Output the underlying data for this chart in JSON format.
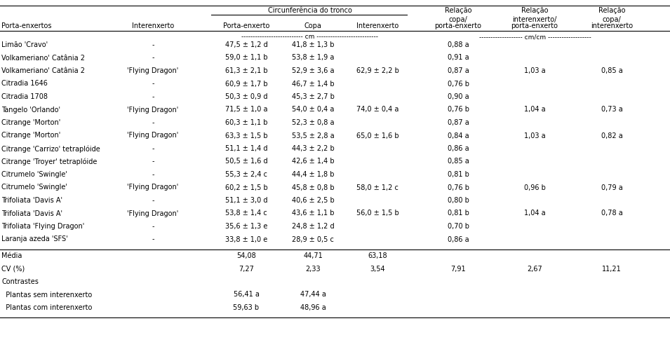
{
  "rows": [
    [
      "Limão 'Cravo'",
      "-",
      "47,5 ± 1,2 d",
      "41,8 ± 1,3 b",
      "",
      "0,88 a",
      "",
      ""
    ],
    [
      "Volkameriano' Catânia 2",
      "-",
      "59,0 ± 1,1 b",
      "53,8 ± 1,9 a",
      "",
      "0,91 a",
      "",
      ""
    ],
    [
      "Volkameriano' Catânia 2",
      "'Flying Dragon'",
      "61,3 ± 2,1 b",
      "52,9 ± 3,6 a",
      "62,9 ± 2,2 b",
      "0,87 a",
      "1,03 a",
      "0,85 a"
    ],
    [
      "Citradia 1646",
      "-",
      "60,9 ± 1,7 b",
      "46,7 ± 1,4 b",
      "",
      "0,76 b",
      "",
      ""
    ],
    [
      "Citradia 1708",
      "-",
      "50,3 ± 0,9 d",
      "45,3 ± 2,7 b",
      "",
      "0,90 a",
      "",
      ""
    ],
    [
      "Tangelo 'Orlando'",
      "'Flying Dragon'",
      "71,5 ± 1,0 a",
      "54,0 ± 0,4 a",
      "74,0 ± 0,4 a",
      "0,76 b",
      "1,04 a",
      "0,73 a"
    ],
    [
      "Citrange 'Morton'",
      "-",
      "60,3 ± 1,1 b",
      "52,3 ± 0,8 a",
      "",
      "0,87 a",
      "",
      ""
    ],
    [
      "Citrange 'Morton'",
      "'Flying Dragon'",
      "63,3 ± 1,5 b",
      "53,5 ± 2,8 a",
      "65,0 ± 1,6 b",
      "0,84 a",
      "1,03 a",
      "0,82 a"
    ],
    [
      "Citrange 'Carrizo' tetraplóide",
      "-",
      "51,1 ± 1,4 d",
      "44,3 ± 2,2 b",
      "",
      "0,86 a",
      "",
      ""
    ],
    [
      "Citrange 'Troyer' tetraplóide",
      "-",
      "50,5 ± 1,6 d",
      "42,6 ± 1,4 b",
      "",
      "0,85 a",
      "",
      ""
    ],
    [
      "Citrumelo 'Swingle'",
      "-",
      "55,3 ± 2,4 c",
      "44,4 ± 1,8 b",
      "",
      "0,81 b",
      "",
      ""
    ],
    [
      "Citrumelo 'Swingle'",
      "'Flying Dragon'",
      "60,2 ± 1,5 b",
      "45,8 ± 0,8 b",
      "58,0 ± 1,2 c",
      "0,76 b",
      "0,96 b",
      "0,79 a"
    ],
    [
      "Trifoliata 'Davis A'",
      "-",
      "51,1 ± 3,0 d",
      "40,6 ± 2,5 b",
      "",
      "0,80 b",
      "",
      ""
    ],
    [
      "Trifoliata 'Davis A'",
      "'Flying Dragon'",
      "53,8 ± 1,4 c",
      "43,6 ± 1,1 b",
      "56,0 ± 1,5 b",
      "0,81 b",
      "1,04 a",
      "0,78 a"
    ],
    [
      "Trifoliata 'Flying Dragon'",
      "-",
      "35,6 ± 1,3 e",
      "24,8 ± 1,2 d",
      "",
      "0,70 b",
      "",
      ""
    ],
    [
      "Laranja azeda 'SFS'",
      "-",
      "33,8 ± 1,0 e",
      "28,9 ± 0,5 c",
      "",
      "0,86 a",
      "",
      ""
    ]
  ],
  "footer_rows": [
    [
      "Média",
      "",
      "54,08",
      "44,71",
      "63,18",
      "",
      "",
      ""
    ],
    [
      "CV (%)",
      "",
      "7,27",
      "2,33",
      "3,54",
      "7,91",
      "2,67",
      "11,21"
    ],
    [
      "Contrastes",
      "",
      "",
      "",
      "",
      "",
      "",
      ""
    ],
    [
      "  Plantas sem interenxerto",
      "",
      "56,41 a",
      "47,44 a",
      "",
      "",
      "",
      ""
    ],
    [
      "  Plantas com interenxerto",
      "",
      "59,63 b",
      "48,96 a",
      "",
      "",
      "",
      ""
    ]
  ],
  "bg_color": "#ffffff",
  "text_color": "#000000",
  "font_size": 7.0,
  "header_font_size": 7.0
}
